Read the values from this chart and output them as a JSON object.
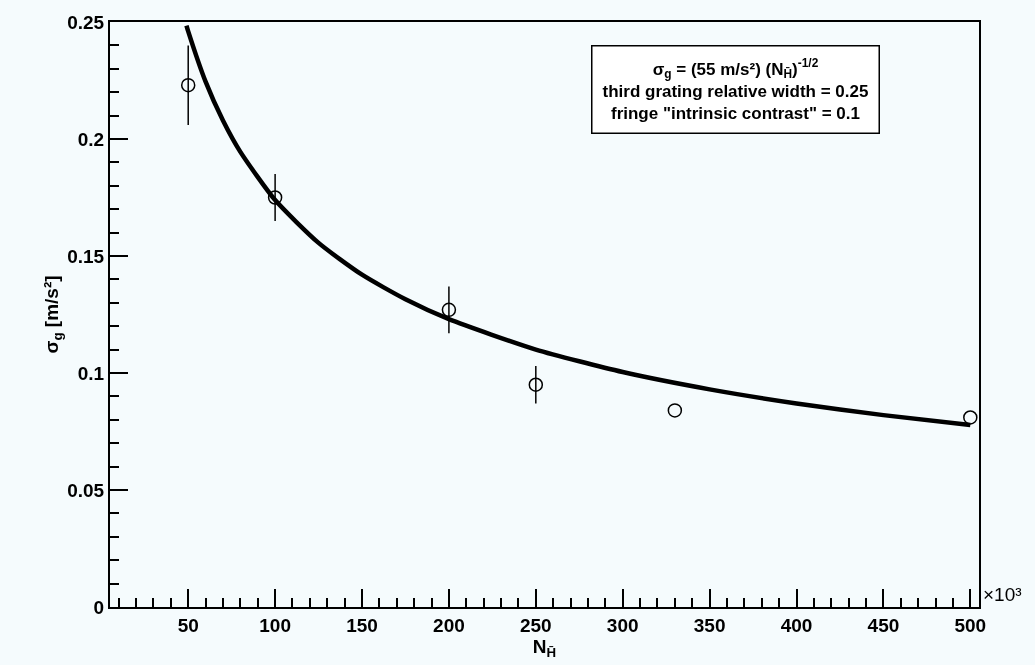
{
  "chart_data": {
    "type": "scatter",
    "xlabel": "N$_{H̄}$",
    "ylabel": "σ$_{g}$ [m/s²]",
    "xlim": [
      5,
      505
    ],
    "ylim": [
      0,
      0.25
    ],
    "xticks": [
      {
        "value": 10,
        "label": null
      },
      {
        "value": 20,
        "label": null
      },
      {
        "value": 30,
        "label": null
      },
      {
        "value": 40,
        "label": null
      },
      50,
      {
        "value": 60,
        "label": null
      },
      {
        "value": 70,
        "label": null
      },
      {
        "value": 80,
        "label": null
      },
      {
        "value": 90,
        "label": null
      },
      100,
      {
        "value": 110,
        "label": null
      },
      {
        "value": 120,
        "label": null
      },
      {
        "value": 130,
        "label": null
      },
      {
        "value": 140,
        "label": null
      },
      150,
      {
        "value": 160,
        "label": null
      },
      {
        "value": 170,
        "label": null
      },
      {
        "value": 180,
        "label": null
      },
      {
        "value": 190,
        "label": null
      },
      200,
      {
        "value": 210,
        "label": null
      },
      {
        "value": 220,
        "label": null
      },
      {
        "value": 230,
        "label": null
      },
      {
        "value": 240,
        "label": null
      },
      250,
      {
        "value": 260,
        "label": null
      },
      {
        "value": 270,
        "label": null
      },
      {
        "value": 280,
        "label": null
      },
      {
        "value": 290,
        "label": null
      },
      300,
      {
        "value": 310,
        "label": null
      },
      {
        "value": 320,
        "label": null
      },
      {
        "value": 330,
        "label": null
      },
      {
        "value": 340,
        "label": null
      },
      350,
      {
        "value": 360,
        "label": null
      },
      {
        "value": 370,
        "label": null
      },
      {
        "value": 380,
        "label": null
      },
      {
        "value": 390,
        "label": null
      },
      400,
      {
        "value": 410,
        "label": null
      },
      {
        "value": 420,
        "label": null
      },
      {
        "value": 430,
        "label": null
      },
      {
        "value": 440,
        "label": null
      },
      450,
      {
        "value": 460,
        "label": null
      },
      {
        "value": 470,
        "label": null
      },
      {
        "value": 480,
        "label": null
      },
      {
        "value": 490,
        "label": null
      },
      500
    ],
    "yticks": [
      0,
      {
        "value": 0.01,
        "label": null
      },
      {
        "value": 0.02,
        "label": null
      },
      {
        "value": 0.03,
        "label": null
      },
      {
        "value": 0.04,
        "label": null
      },
      0.05,
      {
        "value": 0.06,
        "label": null
      },
      {
        "value": 0.07,
        "label": null
      },
      {
        "value": 0.08,
        "label": null
      },
      {
        "value": 0.09,
        "label": null
      },
      {
        "value": 0.1,
        "label": "0.1"
      },
      {
        "value": 0.11,
        "label": null
      },
      {
        "value": 0.12,
        "label": null
      },
      {
        "value": 0.13,
        "label": null
      },
      {
        "value": 0.14,
        "label": null
      },
      0.15,
      {
        "value": 0.16,
        "label": null
      },
      {
        "value": 0.17,
        "label": null
      },
      {
        "value": 0.18,
        "label": null
      },
      {
        "value": 0.19,
        "label": null
      },
      {
        "value": 0.2,
        "label": "0.2"
      },
      {
        "value": 0.21,
        "label": null
      },
      {
        "value": 0.22,
        "label": null
      },
      {
        "value": 0.23,
        "label": null
      },
      {
        "value": 0.24,
        "label": null
      },
      0.25
    ],
    "grid": false,
    "series": [
      {
        "color": "#000000",
        "marker": "circle",
        "x": [
          50,
          100,
          200,
          250,
          330,
          500
        ],
        "values": [
          0.223,
          0.175,
          0.127,
          0.095,
          0.084,
          0.081
        ],
        "errors": [
          0.017,
          0.01,
          0.01,
          0.008,
          null,
          null
        ]
      },
      {
        "type": "line",
        "color": "#000000",
        "marker": "none",
        "line_style": "solid",
        "x": [
          49,
          50,
          60,
          70,
          80,
          100,
          125,
          150,
          175,
          200,
          250,
          300,
          350,
          400,
          450,
          500
        ],
        "values": [
          0.2485,
          0.246,
          0.2245,
          0.2079,
          0.1945,
          0.1739,
          0.1556,
          0.142,
          0.1315,
          0.123,
          0.11,
          0.1004,
          0.093,
          0.087,
          0.082,
          0.0778
        ]
      }
    ],
    "annotations": [
      "σ$_{g}$ = (55 m/s²) (N$_{H̄}$)$^{-1/2}$",
      "third grating relative width = 0.25",
      "fringe \"intrinsic contrast\" = 0.1",
      "×10³"
    ]
  }
}
